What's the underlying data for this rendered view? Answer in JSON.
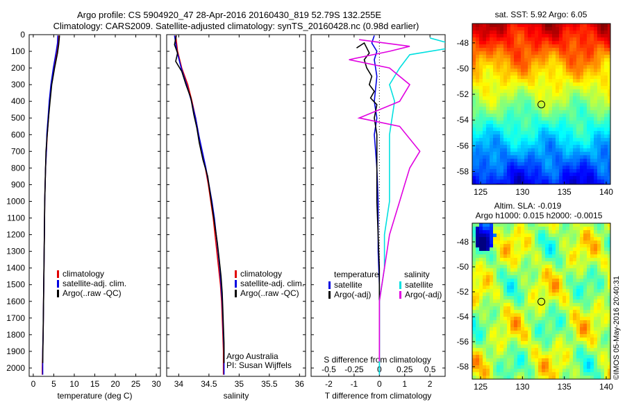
{
  "header": {
    "title_line1": "Argo profile: CS 5904920_47 28-Apr-2016 20160430_819 52.79S 132.255E",
    "title_line2": "Climatology: CARS2009. Satellite-adjusted climatology: synTS_20160428.nc (0.98d earlier)"
  },
  "colors": {
    "climatology": "#e00000",
    "satellite": "#0000e0",
    "argo": "#000000",
    "satellite_salinity": "#00e0e0",
    "argo_salinity": "#e000e0"
  },
  "chart_data": [
    {
      "type": "line",
      "id": "temperature-profile",
      "xlabel": "temperature (deg C)",
      "xlim": [
        -1,
        31
      ],
      "xticks": [
        0,
        5,
        10,
        15,
        20,
        25,
        30
      ],
      "ylim": [
        0,
        2050
      ],
      "yticks": [
        0,
        100,
        200,
        300,
        400,
        500,
        600,
        700,
        800,
        900,
        1000,
        1100,
        1200,
        1300,
        1400,
        1500,
        1600,
        1700,
        1800,
        1900,
        2000
      ],
      "legend": [
        "climatology",
        "satellite-adj. clim.",
        "Argo(..raw -QC)"
      ],
      "series": [
        {
          "name": "climatology",
          "color": "#e00000",
          "points": [
            [
              6.2,
              5
            ],
            [
              6.0,
              50
            ],
            [
              5.8,
              100
            ],
            [
              5.0,
              200
            ],
            [
              4.4,
              300
            ],
            [
              4.0,
              400
            ],
            [
              3.7,
              500
            ],
            [
              3.4,
              600
            ],
            [
              3.2,
              700
            ],
            [
              3.0,
              800
            ],
            [
              2.9,
              900
            ],
            [
              2.8,
              1000
            ],
            [
              2.7,
              1200
            ],
            [
              2.6,
              1400
            ],
            [
              2.5,
              1600
            ],
            [
              2.4,
              1800
            ],
            [
              2.3,
              1900
            ],
            [
              2.2,
              2000
            ],
            [
              2.2,
              2040
            ]
          ]
        },
        {
          "name": "satellite-adj. clim.",
          "color": "#0000e0",
          "points": [
            [
              6.0,
              5
            ],
            [
              5.9,
              50
            ],
            [
              5.6,
              100
            ],
            [
              4.9,
              200
            ],
            [
              4.3,
              300
            ],
            [
              3.9,
              400
            ],
            [
              3.6,
              500
            ],
            [
              3.3,
              600
            ],
            [
              3.2,
              700
            ],
            [
              3.0,
              800
            ],
            [
              2.9,
              900
            ],
            [
              2.8,
              1000
            ],
            [
              2.7,
              1200
            ],
            [
              2.6,
              1400
            ],
            [
              2.5,
              1600
            ],
            [
              2.4,
              1800
            ],
            [
              2.3,
              1900
            ],
            [
              2.3,
              2040
            ]
          ]
        },
        {
          "name": "Argo(..raw -QC)",
          "color": "#000000",
          "points": [
            [
              6.4,
              5
            ],
            [
              6.2,
              60
            ],
            [
              5.9,
              110
            ],
            [
              5.2,
              200
            ],
            [
              4.5,
              300
            ],
            [
              4.1,
              400
            ],
            [
              3.8,
              480
            ],
            [
              3.4,
              600
            ],
            [
              3.1,
              700
            ],
            [
              3.0,
              800
            ],
            [
              2.9,
              900
            ],
            [
              2.8,
              1000
            ],
            [
              2.7,
              1200
            ],
            [
              2.6,
              1400
            ],
            [
              2.5,
              1600
            ],
            [
              2.4,
              1800
            ],
            [
              2.3,
              1970
            ]
          ]
        }
      ]
    },
    {
      "type": "line",
      "id": "salinity-profile",
      "xlabel": "salinity",
      "xlim": [
        33.8,
        36.1
      ],
      "xticks": [
        34,
        34.5,
        35,
        35.5,
        36
      ],
      "xtick_labels": [
        "34",
        "34.5",
        "35",
        "35.5",
        "36"
      ],
      "ylim": [
        0,
        2050
      ],
      "legend": [
        "climatology",
        "satellite-adj. clim.",
        "Argo(..raw -QC)"
      ],
      "annotation": [
        "Argo Australia",
        "PI: Susan Wijffels"
      ],
      "series": [
        {
          "name": "climatology",
          "color": "#e00000",
          "points": [
            [
              33.95,
              5
            ],
            [
              33.98,
              100
            ],
            [
              34.05,
              200
            ],
            [
              34.15,
              300
            ],
            [
              34.22,
              400
            ],
            [
              34.28,
              500
            ],
            [
              34.33,
              600
            ],
            [
              34.38,
              700
            ],
            [
              34.44,
              800
            ],
            [
              34.49,
              900
            ],
            [
              34.53,
              1000
            ],
            [
              34.57,
              1100
            ],
            [
              34.6,
              1200
            ],
            [
              34.63,
              1300
            ],
            [
              34.66,
              1400
            ],
            [
              34.69,
              1500
            ],
            [
              34.71,
              1600
            ],
            [
              34.72,
              1700
            ],
            [
              34.73,
              1800
            ],
            [
              34.74,
              1900
            ],
            [
              34.74,
              2040
            ]
          ]
        },
        {
          "name": "satellite-adj. clim.",
          "color": "#0000e0",
          "points": [
            [
              33.93,
              5
            ],
            [
              33.97,
              100
            ],
            [
              34.04,
              200
            ],
            [
              34.13,
              300
            ],
            [
              34.21,
              400
            ],
            [
              34.28,
              500
            ],
            [
              34.33,
              600
            ],
            [
              34.39,
              700
            ],
            [
              34.45,
              800
            ],
            [
              34.5,
              900
            ],
            [
              34.55,
              1000
            ],
            [
              34.59,
              1100
            ],
            [
              34.62,
              1200
            ],
            [
              34.65,
              1300
            ],
            [
              34.68,
              1400
            ],
            [
              34.7,
              1500
            ],
            [
              34.72,
              1600
            ],
            [
              34.73,
              1700
            ],
            [
              34.74,
              1800
            ],
            [
              34.75,
              1900
            ],
            [
              34.75,
              2040
            ]
          ]
        },
        {
          "name": "Argo(..raw -QC)",
          "color": "#000000",
          "points": [
            [
              33.96,
              5
            ],
            [
              33.93,
              60
            ],
            [
              33.98,
              110
            ],
            [
              33.95,
              160
            ],
            [
              34.05,
              220
            ],
            [
              34.12,
              300
            ],
            [
              34.2,
              380
            ],
            [
              34.25,
              480
            ],
            [
              34.3,
              560
            ],
            [
              34.34,
              650
            ],
            [
              34.4,
              750
            ],
            [
              34.48,
              850
            ],
            [
              34.52,
              950
            ],
            [
              34.56,
              1050
            ],
            [
              34.6,
              1150
            ],
            [
              34.64,
              1250
            ],
            [
              34.67,
              1350
            ],
            [
              34.7,
              1450
            ],
            [
              34.72,
              1550
            ],
            [
              34.73,
              1650
            ],
            [
              34.74,
              1750
            ],
            [
              34.75,
              1850
            ],
            [
              34.75,
              1970
            ]
          ]
        }
      ]
    },
    {
      "type": "line",
      "id": "difference-profile",
      "xlabel": "T difference from climatology",
      "xlabel_top": "S difference from climatology",
      "xlim": [
        -2.7,
        2.6
      ],
      "xticks": [
        -2,
        -1,
        0,
        1,
        2
      ],
      "xticks_top": [
        -0.5,
        -0.25,
        0,
        0.25,
        0.5
      ],
      "xtick_labels_top": [
        "-0.5",
        "-0.25",
        "0",
        "0.25",
        "0.5"
      ],
      "s_scale_factor": 4,
      "ylim": [
        0,
        2050
      ],
      "legend_left": {
        "heading": "temperature",
        "entries": [
          "satellite",
          "Argo(-adj)"
        ]
      },
      "legend_right": {
        "heading": "salinity",
        "entries": [
          "satellite",
          "Argo(-adj)"
        ]
      },
      "series": [
        {
          "name": "T satellite",
          "color": "#0000e0",
          "points": [
            [
              -0.2,
              5
            ],
            [
              -0.3,
              50
            ],
            [
              -0.1,
              100
            ],
            [
              -0.2,
              150
            ],
            [
              -0.1,
              250
            ],
            [
              -0.2,
              400
            ],
            [
              -0.1,
              500
            ],
            [
              -0.2,
              600
            ],
            [
              -0.15,
              700
            ],
            [
              -0.1,
              800
            ],
            [
              -0.05,
              1000
            ],
            [
              -0.05,
              1300
            ],
            [
              0,
              1500
            ],
            [
              0,
              2040
            ]
          ]
        },
        {
          "name": "T Argo(-adj)",
          "color": "#000000",
          "points": [
            [
              -0.9,
              80
            ],
            [
              -0.6,
              50
            ],
            [
              -0.4,
              110
            ],
            [
              -0.6,
              150
            ],
            [
              -0.5,
              200
            ],
            [
              -0.3,
              250
            ],
            [
              -0.4,
              300
            ],
            [
              -0.2,
              340
            ],
            [
              -0.35,
              380
            ],
            [
              -0.1,
              420
            ],
            [
              -0.2,
              500
            ],
            [
              -0.1,
              600
            ],
            [
              -0.1,
              800
            ],
            [
              -0.1,
              1000
            ],
            [
              -0.05,
              1200
            ],
            [
              0,
              1400
            ],
            [
              0,
              1600
            ],
            [
              0,
              1960
            ]
          ]
        },
        {
          "name": "S satellite",
          "color": "#00e0e0",
          "points": [
            [
              0.5,
              20
            ],
            [
              0.8,
              70
            ],
            [
              0.3,
              120
            ],
            [
              0.2,
              200
            ],
            [
              0.1,
              300
            ],
            [
              0.15,
              400
            ],
            [
              0.1,
              600
            ],
            [
              0.1,
              800
            ],
            [
              0.1,
              1000
            ],
            [
              0.05,
              1200
            ],
            [
              0.05,
              1400
            ],
            [
              0,
              1600
            ],
            [
              0,
              2040
            ]
          ]
        },
        {
          "name": "S Argo(-adj)",
          "color": "#e000e0",
          "points": [
            [
              -0.2,
              30
            ],
            [
              0.3,
              70
            ],
            [
              0.1,
              100
            ],
            [
              -0.3,
              150
            ],
            [
              0.1,
              200
            ],
            [
              0.3,
              300
            ],
            [
              0.2,
              400
            ],
            [
              -0.2,
              500
            ],
            [
              0.2,
              550
            ],
            [
              0.4,
              700
            ],
            [
              0.3,
              800
            ],
            [
              0.25,
              900
            ],
            [
              0.2,
              1000
            ],
            [
              0.15,
              1100
            ],
            [
              0.1,
              1200
            ],
            [
              0.05,
              1400
            ],
            [
              0,
              1600
            ],
            [
              0,
              1960
            ]
          ]
        }
      ]
    },
    {
      "type": "heatmap",
      "id": "sst-map",
      "title": "sat. SST: 5.92  Argo: 6.05",
      "xlim": [
        124,
        140.5
      ],
      "ylim": [
        -59,
        -46.5
      ],
      "xticks": [
        125,
        130,
        135,
        140
      ],
      "yticks": [
        -48,
        -50,
        -52,
        -54,
        -56,
        -58
      ],
      "marker": [
        132.255,
        -52.79
      ]
    },
    {
      "type": "heatmap",
      "id": "sla-map",
      "title_line1": "Altim. SLA: -0.019",
      "title_line2": "Argo h1000: 0.015  h2000: -0.0015",
      "xlim": [
        124,
        140.5
      ],
      "ylim": [
        -59,
        -46.5
      ],
      "xticks": [
        125,
        130,
        135,
        140
      ],
      "yticks": [
        -48,
        -50,
        -52,
        -54,
        -56,
        -58
      ],
      "marker": [
        132.255,
        -52.79
      ]
    }
  ],
  "credit": "©IMOS 05-May-2016 20:40:31"
}
